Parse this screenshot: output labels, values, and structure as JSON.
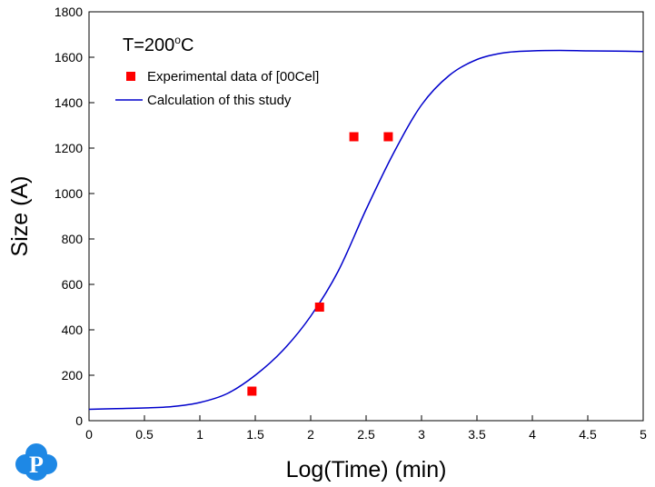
{
  "chart_data": {
    "type": "scatter",
    "annotation": "T=200",
    "annotation_sup": "o",
    "annotation_unit": "C",
    "xlabel": "Log(Time) (min)",
    "ylabel": "Size (A)",
    "xlim": [
      0,
      5
    ],
    "ylim": [
      0,
      1800
    ],
    "x_ticks": [
      "0",
      "0.5",
      "1",
      "1.5",
      "2",
      "2.5",
      "3",
      "3.5",
      "4",
      "4.5",
      "5"
    ],
    "y_ticks": [
      "0",
      "200",
      "400",
      "600",
      "800",
      "1000",
      "1200",
      "1400",
      "1600",
      "1800"
    ],
    "grid": false,
    "legend_position": "top-left",
    "colors": {
      "experimental": "#ff0000",
      "calculation": "#0000cc",
      "logo": "#1e88e5"
    },
    "series": [
      {
        "name": "Experimental data of [00Cel]",
        "kind": "scatter",
        "x": [
          1.47,
          2.08,
          2.39,
          2.7
        ],
        "y": [
          130,
          500,
          1250,
          1250
        ]
      },
      {
        "name": "Calculation of this study",
        "kind": "line",
        "x": [
          0,
          0.25,
          0.5,
          0.75,
          1.0,
          1.25,
          1.5,
          1.75,
          2.0,
          2.25,
          2.5,
          2.75,
          3.0,
          3.25,
          3.5,
          3.75,
          4.0,
          4.25,
          4.5,
          4.75,
          5.0
        ],
        "y": [
          50,
          53,
          56,
          62,
          80,
          120,
          200,
          310,
          460,
          660,
          930,
          1180,
          1390,
          1520,
          1590,
          1620,
          1628,
          1630,
          1628,
          1627,
          1625
        ]
      }
    ],
    "logo_text": "P"
  }
}
